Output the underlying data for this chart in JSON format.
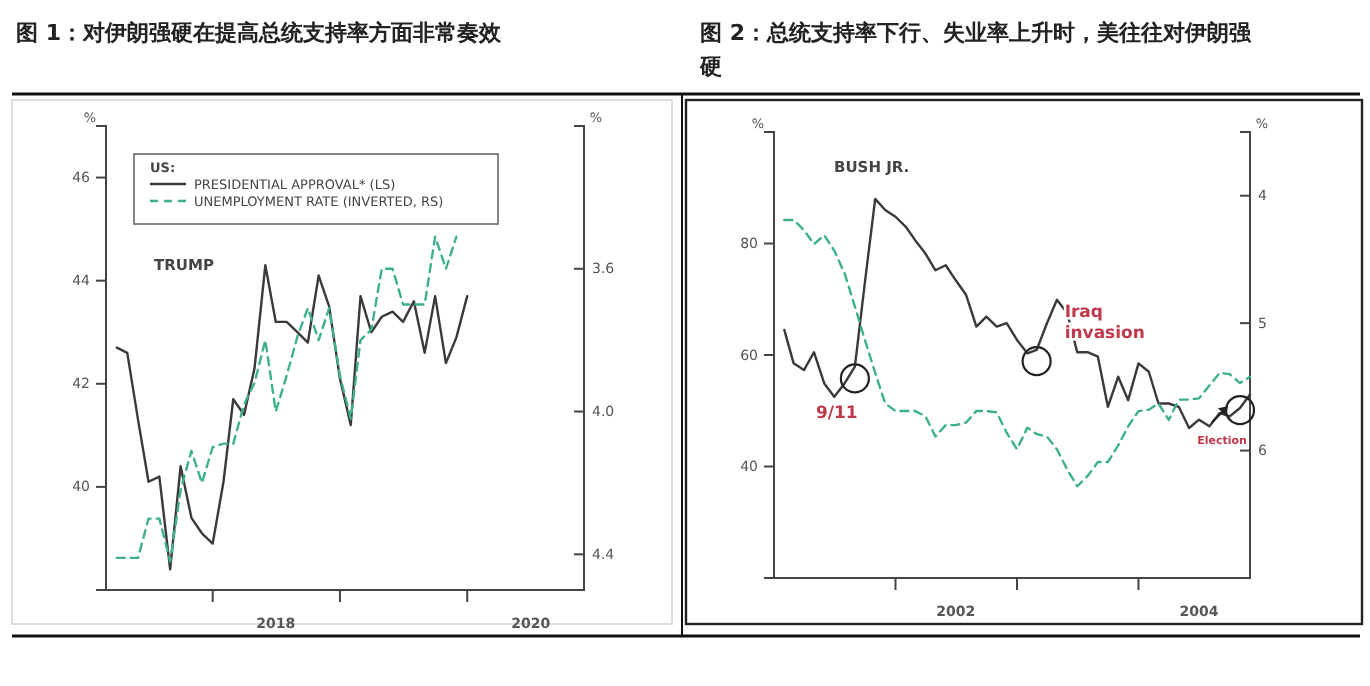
{
  "chart_data": [
    {
      "type": "line",
      "title": "图 1：对伊朗强硬在提高总统支持率方面非常奏效",
      "ylabel": "%",
      "y2label": "%",
      "legend": "top left",
      "legend_title": "US:",
      "xlim": [
        "2017-03",
        "2020-12"
      ],
      "xticks": [
        {
          "value": "2018-01",
          "label": null
        },
        {
          "value": "2018-07",
          "label": "2018"
        },
        {
          "value": "2019-01",
          "label": null
        },
        {
          "value": "2020-01",
          "label": null
        },
        {
          "value": "2020-07",
          "label": "2020"
        }
      ],
      "ylim": [
        38,
        47
      ],
      "yticks": [
        40,
        42,
        44,
        46
      ],
      "y2lim": [
        4.5,
        3.2
      ],
      "y2ticks": [
        {
          "value": 3.6,
          "label": "3.6"
        },
        {
          "value": 4.0,
          "label": "4.0"
        },
        {
          "value": 4.4,
          "label": "4.4"
        }
      ],
      "annotations": [
        "TRUMP"
      ],
      "series": [
        {
          "name": "PRESIDENTIAL APPROVAL* (LS)",
          "color": "#3a3a3a",
          "line_style": "solid",
          "x": [
            "2017-04",
            "2017-05",
            "2017-06",
            "2017-07",
            "2017-08",
            "2017-09",
            "2017-10",
            "2017-11",
            "2017-12",
            "2018-01",
            "2018-02",
            "2018-03",
            "2018-04",
            "2018-05",
            "2018-06",
            "2018-07",
            "2018-08",
            "2018-09",
            "2018-10",
            "2018-11",
            "2018-12",
            "2019-01",
            "2019-02",
            "2019-03",
            "2019-04",
            "2019-05",
            "2019-06",
            "2019-07",
            "2019-08",
            "2019-09",
            "2019-10",
            "2019-11",
            "2019-12",
            "2020-01"
          ],
          "values": [
            42.7,
            42.6,
            41.3,
            40.1,
            40.2,
            38.4,
            40.4,
            39.4,
            39.1,
            38.9,
            40.1,
            41.7,
            41.4,
            42.3,
            44.3,
            43.2,
            43.2,
            43.0,
            42.8,
            44.1,
            43.5,
            42.1,
            41.2,
            43.7,
            43.0,
            43.3,
            43.4,
            43.2,
            43.6,
            42.6,
            43.7,
            42.4,
            42.9,
            43.7
          ]
        },
        {
          "name": "UNEMPLOYMENT RATE (INVERTED, RS)",
          "color": "#3fb08c",
          "line_style": "dashed",
          "axis": "y2",
          "x": [
            "2017-04",
            "2017-05",
            "2017-06",
            "2017-07",
            "2017-08",
            "2017-09",
            "2017-10",
            "2017-11",
            "2017-12",
            "2018-01",
            "2018-02",
            "2018-03",
            "2018-04",
            "2018-05",
            "2018-06",
            "2018-07",
            "2018-08",
            "2018-09",
            "2018-10",
            "2018-11",
            "2018-12",
            "2019-01",
            "2019-02",
            "2019-03",
            "2019-04",
            "2019-05",
            "2019-06",
            "2019-07",
            "2019-08",
            "2019-09",
            "2019-10",
            "2019-11",
            "2019-12"
          ],
          "values": [
            4.41,
            4.41,
            4.41,
            4.3,
            4.3,
            4.42,
            4.22,
            4.11,
            4.2,
            4.1,
            4.09,
            4.09,
            3.98,
            3.92,
            3.8,
            4.0,
            3.9,
            3.79,
            3.71,
            3.8,
            3.71,
            3.9,
            4.02,
            3.8,
            3.77,
            3.6,
            3.6,
            3.7,
            3.7,
            3.7,
            3.51,
            3.6,
            3.51
          ]
        }
      ]
    },
    {
      "type": "line",
      "title": "图 2：总统支持率下行、失业率上升时，美往往对伊朗强硬",
      "ylabel": "%",
      "y2label": "%",
      "xlim": [
        "2001-01",
        "2004-12"
      ],
      "xticks": [
        {
          "value": "2002-01",
          "label": null
        },
        {
          "value": "2002-07",
          "label": "2002"
        },
        {
          "value": "2003-01",
          "label": null
        },
        {
          "value": "2004-01",
          "label": null
        },
        {
          "value": "2004-07",
          "label": "2004"
        }
      ],
      "ylim": [
        20,
        100
      ],
      "yticks": [
        40,
        60,
        80
      ],
      "y2lim": [
        7,
        3.5
      ],
      "y2ticks": [
        4,
        5,
        6
      ],
      "annotations": [
        "BUSH JR.",
        {
          "text": "9/11",
          "x": "2001-09",
          "y": 55.8
        },
        {
          "text": "Iraq invasion",
          "x": "2003-03",
          "y": 58.9
        },
        {
          "text": "Election",
          "x": "2004-11",
          "y": 50.1
        }
      ],
      "series": [
        {
          "color": "#3a3a3a",
          "line_style": "solid",
          "x": [
            "2001-02",
            "2001-03",
            "2001-04",
            "2001-05",
            "2001-06",
            "2001-07",
            "2001-08",
            "2001-09",
            "2001-10",
            "2001-11",
            "2001-12",
            "2002-01",
            "2002-02",
            "2002-03",
            "2002-04",
            "2002-05",
            "2002-06",
            "2002-07",
            "2002-08",
            "2002-09",
            "2002-10",
            "2002-11",
            "2002-12",
            "2003-01",
            "2003-02",
            "2003-03",
            "2003-04",
            "2003-05",
            "2003-06",
            "2003-07",
            "2003-08",
            "2003-09",
            "2003-10",
            "2003-11",
            "2003-12",
            "2004-01",
            "2004-02",
            "2004-03",
            "2004-04",
            "2004-05",
            "2004-06",
            "2004-07",
            "2004-08",
            "2004-09",
            "2004-10",
            "2004-11",
            "2004-12"
          ],
          "values": [
            64.5,
            58.5,
            57.3,
            60.5,
            54.9,
            52.5,
            54.9,
            57.9,
            73,
            88,
            86,
            84.8,
            83,
            80.6,
            78.2,
            75.2,
            76.1,
            73.4,
            70.8,
            65.1,
            66.9,
            65.1,
            65.7,
            62.7,
            60.3,
            60.9,
            65.7,
            69.9,
            67.5,
            60.5,
            60.5,
            59.7,
            50.7,
            56.1,
            51.9,
            58.5,
            57,
            51.3,
            51.3,
            50.7,
            46.9,
            48.4,
            47.2,
            49.6,
            49,
            50.5,
            52.9
          ]
        },
        {
          "color": "#3fb08c",
          "line_style": "dashed",
          "axis": "y2",
          "x": [
            "2001-02",
            "2001-03",
            "2001-04",
            "2001-05",
            "2001-06",
            "2001-07",
            "2001-08",
            "2001-09",
            "2001-10",
            "2001-11",
            "2001-12",
            "2002-01",
            "2002-02",
            "2002-03",
            "2002-04",
            "2002-05",
            "2002-06",
            "2002-07",
            "2002-08",
            "2002-09",
            "2002-10",
            "2002-11",
            "2002-12",
            "2003-01",
            "2003-02",
            "2003-03",
            "2003-04",
            "2003-05",
            "2003-06",
            "2003-07",
            "2003-08",
            "2003-09",
            "2003-10",
            "2003-11",
            "2003-12",
            "2004-01",
            "2004-02",
            "2004-03",
            "2004-04",
            "2004-05",
            "2004-06",
            "2004-07",
            "2004-08",
            "2004-09",
            "2004-10",
            "2004-11",
            "2004-12"
          ],
          "values": [
            4.19,
            4.19,
            4.27,
            4.38,
            4.31,
            4.43,
            4.61,
            4.87,
            5.13,
            5.39,
            5.63,
            5.69,
            5.69,
            5.69,
            5.73,
            5.89,
            5.8,
            5.8,
            5.78,
            5.69,
            5.69,
            5.7,
            5.86,
            5.99,
            5.82,
            5.87,
            5.89,
            5.99,
            6.15,
            6.28,
            6.2,
            6.09,
            6.09,
            5.96,
            5.81,
            5.69,
            5.68,
            5.63,
            5.76,
            5.6,
            5.6,
            5.59,
            5.49,
            5.39,
            5.4,
            5.47,
            5.42
          ]
        }
      ]
    }
  ]
}
